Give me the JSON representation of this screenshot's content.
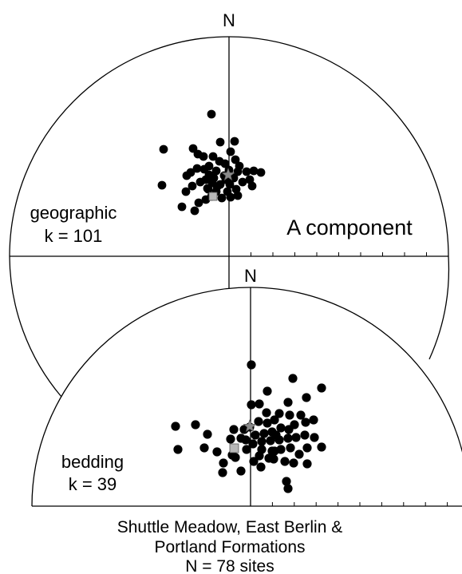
{
  "colors": {
    "line": "#000000",
    "site_marker": "#000000",
    "mean_marker": "#8a8a8a",
    "pole_marker": "#b8b8b8"
  },
  "north_label_top": "N",
  "north_label_bottom": "N",
  "top_panel": {
    "frame": "geographic",
    "precision": "k = 101",
    "component": "A component"
  },
  "bottom_panel": {
    "frame": "bedding",
    "precision": "k = 39"
  },
  "caption": {
    "line1": "Shuttle Meadow, East Berlin &",
    "line2": "Portland Formations",
    "line3": "N = 78 sites"
  },
  "chart_data": [
    {
      "type": "scatter",
      "projection": "equal-area stereonet, upper half",
      "frame": "geographic",
      "k": 101,
      "n_sites": 78,
      "mean_direction_marker": "star",
      "pole_marker": "square"
    },
    {
      "type": "scatter",
      "projection": "equal-area stereonet, upper half",
      "frame": "bedding",
      "k": 39,
      "n_sites": 78,
      "mean_direction_marker": "star",
      "pole_marker": "square"
    }
  ]
}
